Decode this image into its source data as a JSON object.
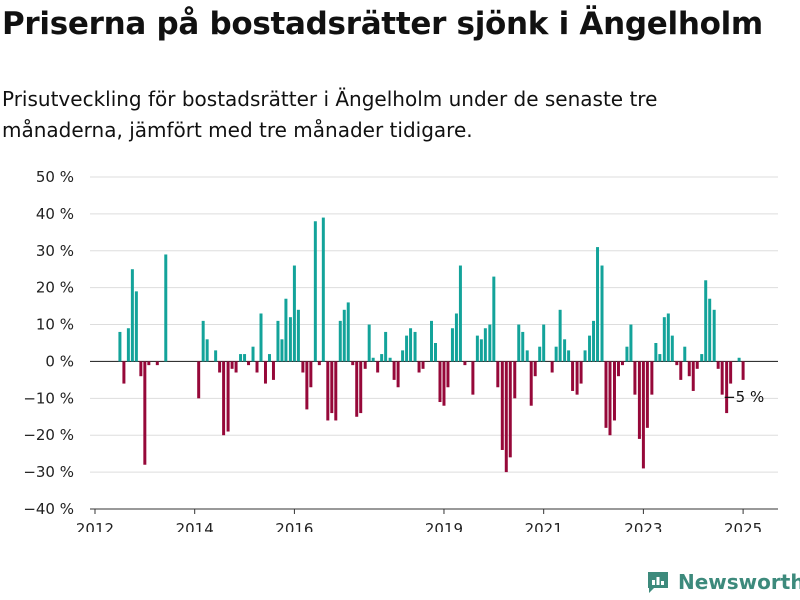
{
  "header": {
    "title": "Priserna på bostadsrätter sjönk i Ängelholm",
    "subtitle": "Prisutveckling för bostadsrätter i Ängelholm under de senaste tre månaderna, jämfört med tre månader tidigare."
  },
  "brand": {
    "name": "Newsworthy",
    "icon": "newsworthy-logo-icon",
    "color": "#3d8a7c"
  },
  "chart_data": {
    "type": "bar",
    "title": "",
    "xlabel": "",
    "ylabel": "",
    "ylim": [
      -40,
      50
    ],
    "y_ticks": [
      -40,
      -30,
      -20,
      -10,
      0,
      10,
      20,
      30,
      40,
      50
    ],
    "y_tick_labels": [
      "−40 %",
      "−30 %",
      "−20 %",
      "−10 %",
      "0 %",
      "10 %",
      "20 %",
      "30 %",
      "40 %",
      "50 %"
    ],
    "x_range": [
      2011.9,
      2025.7
    ],
    "x_ticks": [
      2012,
      2014,
      2016,
      2019,
      2021,
      2023,
      2025
    ],
    "x_tick_labels": [
      "2012",
      "2014",
      "2016",
      "2019",
      "2021",
      "2023",
      "2025"
    ],
    "grid": true,
    "colors": {
      "positive": "#13a39a",
      "negative": "#960839",
      "gridline": "#dddddd",
      "zero": "#333333"
    },
    "annotation": {
      "text": "−5 %",
      "x": 2025.0,
      "y": -5
    },
    "series": [
      {
        "x": [
          2012.5,
          2012.58,
          2012.67,
          2012.75,
          2012.83,
          2012.92,
          2013.0,
          2013.08,
          2013.25,
          2013.42,
          2014.08,
          2014.17,
          2014.25,
          2014.42,
          2014.5,
          2014.58,
          2014.67,
          2014.75,
          2014.83,
          2014.92,
          2015.0,
          2015.08,
          2015.17,
          2015.25,
          2015.33,
          2015.42,
          2015.5,
          2015.58,
          2015.67,
          2015.75,
          2015.83,
          2015.92,
          2016.0,
          2016.08,
          2016.17,
          2016.25,
          2016.33,
          2016.42,
          2016.5,
          2016.58,
          2016.67,
          2016.75,
          2016.83,
          2016.92,
          2017.0,
          2017.08,
          2017.17,
          2017.25,
          2017.33,
          2017.42,
          2017.5,
          2017.58,
          2017.67,
          2017.75,
          2017.83,
          2017.92,
          2018.0,
          2018.08,
          2018.17,
          2018.25,
          2018.33,
          2018.42,
          2018.5,
          2018.58,
          2018.67,
          2018.75,
          2018.83,
          2018.92,
          2019.0,
          2019.08,
          2019.17,
          2019.25,
          2019.33,
          2019.42,
          2019.5,
          2019.58,
          2019.67,
          2019.75,
          2019.83,
          2019.92,
          2020.0,
          2020.08,
          2020.17,
          2020.25,
          2020.33,
          2020.42,
          2020.5,
          2020.58,
          2020.67,
          2020.75,
          2020.83,
          2020.92,
          2021.0,
          2021.08,
          2021.17,
          2021.25,
          2021.33,
          2021.42,
          2021.5,
          2021.58,
          2021.67,
          2021.75,
          2021.83,
          2021.92,
          2022.0,
          2022.08,
          2022.17,
          2022.25,
          2022.33,
          2022.42,
          2022.5,
          2022.58,
          2022.67,
          2022.75,
          2022.83,
          2022.92,
          2023.0,
          2023.08,
          2023.17,
          2023.25,
          2023.33,
          2023.42,
          2023.5,
          2023.58,
          2023.67,
          2023.75,
          2023.83,
          2023.92,
          2024.0,
          2024.08,
          2024.17,
          2024.25,
          2024.33,
          2024.42,
          2024.5,
          2024.58,
          2024.67,
          2024.75,
          2024.83,
          2024.92,
          2025.0
        ],
        "values": [
          8,
          -6,
          9,
          25,
          19,
          -4,
          -28,
          -1,
          -1,
          29,
          -10,
          11,
          6,
          3,
          -3,
          -20,
          -19,
          -2,
          -3,
          2,
          2,
          -1,
          4,
          -3,
          13,
          -6,
          2,
          -5,
          11,
          6,
          17,
          12,
          26,
          14,
          -3,
          -13,
          -7,
          38,
          -1,
          39,
          -16,
          -14,
          -16,
          11,
          14,
          16,
          -1,
          -15,
          -14,
          -2,
          10,
          1,
          -3,
          2,
          8,
          1,
          -5,
          -7,
          3,
          7,
          9,
          8,
          -3,
          -2,
          0,
          11,
          5,
          -11,
          -12,
          -7,
          9,
          13,
          26,
          -1,
          0,
          -9,
          7,
          6,
          9,
          10,
          23,
          -7,
          -24,
          -30,
          -26,
          -10,
          10,
          8,
          3,
          -12,
          -4,
          4,
          10,
          0,
          -3,
          4,
          14,
          6,
          3,
          -8,
          -9,
          -6,
          3,
          7,
          11,
          31,
          26,
          -18,
          -20,
          -16,
          -4,
          -1,
          4,
          10,
          -9,
          -21,
          -29,
          -18,
          -9,
          5,
          2,
          12,
          13,
          7,
          -1,
          -5,
          4,
          -4,
          -8,
          -2,
          2,
          22,
          17,
          14,
          -2,
          -9,
          -14,
          -6,
          0,
          1,
          -5
        ]
      }
    ]
  }
}
